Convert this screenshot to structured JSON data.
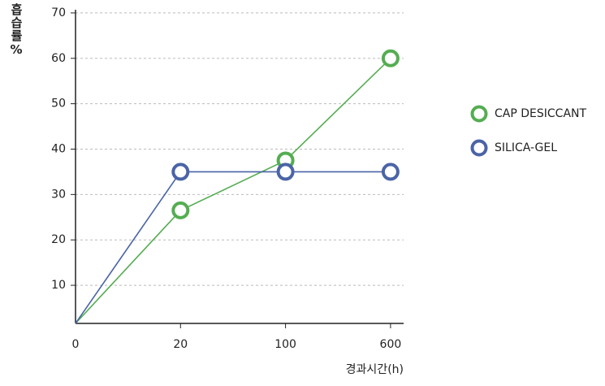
{
  "chart_data": {
    "type": "line",
    "x_label": "경과시간(h)",
    "y_label": "흡습률%",
    "categories": [
      "0",
      "20",
      "100",
      "600"
    ],
    "series": [
      {
        "name": "CAP DESICCANT",
        "color": "#55ad52",
        "values": [
          1.6,
          26.5,
          37.5,
          60
        ]
      },
      {
        "name": "SILICA-GEL",
        "color": "#4a64a6",
        "values": [
          1.6,
          35,
          35,
          35
        ]
      }
    ],
    "ylim": [
      1.6,
      70.7
    ],
    "yticks": [
      10,
      20,
      30,
      40,
      50,
      60,
      70
    ],
    "grid": true,
    "legend": "right"
  }
}
